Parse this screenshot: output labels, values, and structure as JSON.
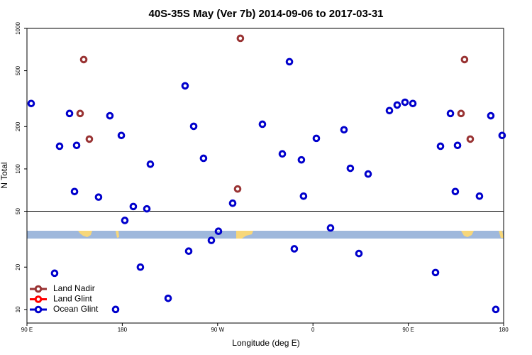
{
  "chart_data": {
    "type": "scatter",
    "title": "40S-35S May (Ver 7b)   2014-09-06 to 2017-03-31",
    "x_label": "Longitude (deg E)",
    "y_label": "N Total",
    "xlim": [
      90,
      540
    ],
    "xticks": [
      {
        "value": 90,
        "label": "90 E"
      },
      180,
      {
        "value": 270,
        "label": "90 W"
      },
      {
        "value": 360,
        "label": "0"
      },
      {
        "value": 450,
        "label": "90 E"
      },
      {
        "value": 540,
        "label": "180"
      }
    ],
    "ylim": [
      8,
      1000
    ],
    "yticks": [
      10,
      20,
      50,
      100,
      200,
      500,
      1000
    ],
    "log_y": true,
    "reference_line": 50,
    "legend": "bottom-left",
    "series": [
      {
        "name": "Land Nadir",
        "color": "#993333",
        "x": [
          143.6,
          140.2,
          148.9,
          291.5,
          288.9,
          503.1,
          499.8,
          508.5
        ],
        "values": [
          600,
          248,
          163,
          850,
          72,
          600,
          248,
          163
        ]
      },
      {
        "name": "Land Glint",
        "color": "#ff0000",
        "x": [],
        "values": []
      },
      {
        "name": "Ocean Glint",
        "color": "#0000cc",
        "x": [
          94.0,
          120.8,
          130.2,
          134.9,
          136.9,
          116.1,
          157.6,
          168.3,
          179.1,
          182.4,
          173.7,
          190.4,
          197.1,
          203.2,
          206.5,
          223.3,
          239.3,
          242.7,
          247.4,
          256.7,
          264.1,
          270.8,
          284.2,
          312.3,
          331.1,
          337.8,
          342.4,
          349.1,
          351.1,
          363.2,
          376.6,
          389.3,
          395.3,
          403.4,
          412.1,
          432.2,
          439.5,
          446.9,
          454.3,
          475.7,
          480.4,
          489.8,
          494.4,
          496.5,
          517.2,
          527.9,
          532.6,
          538.6
        ],
        "values": [
          292,
          145,
          248,
          69,
          147,
          18.1,
          63,
          239,
          173,
          43,
          10,
          54,
          20,
          52,
          108,
          12,
          390,
          26,
          201,
          119,
          31,
          36,
          57,
          208,
          128,
          579,
          27,
          116,
          64,
          165,
          38,
          190,
          101,
          25,
          92,
          260,
          285,
          298,
          292,
          18.3,
          145,
          248,
          69,
          147,
          64,
          239,
          10,
          173
        ]
      }
    ]
  }
}
